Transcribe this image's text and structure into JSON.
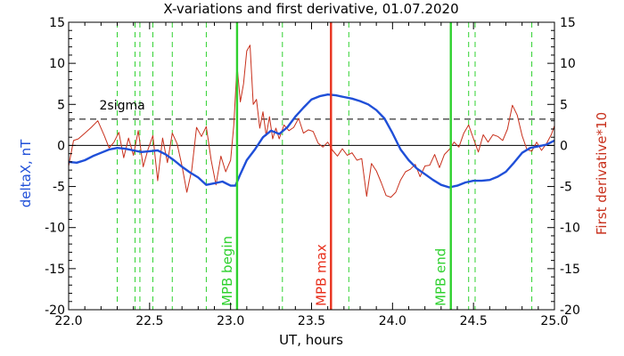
{
  "chart_data": {
    "type": "line",
    "title": "X-variations and first derivative, 01.07.2020",
    "xlabel": "UT, hours",
    "ylabel_left": "deltaX, nT",
    "ylabel_right": "First derivative*10",
    "xlim": [
      22.0,
      25.0
    ],
    "ylim": [
      -20,
      15
    ],
    "x_ticks": [
      22.0,
      22.5,
      23.0,
      23.5,
      24.0,
      24.5,
      25.0
    ],
    "x_tick_labels": [
      "22.0",
      "22.5",
      "23.0",
      "23.5",
      "24.0",
      "24.5",
      "25.0"
    ],
    "y_ticks": [
      15,
      10,
      5,
      0,
      -5,
      -10,
      -15,
      -20
    ],
    "y_tick_labels": [
      "15",
      "10",
      "5",
      "0",
      "-5",
      "-10",
      "-15",
      "-20"
    ],
    "colors": {
      "deltaX": "#1f4fd8",
      "derivative": "#c8301c",
      "mpb": "#2fd12f",
      "mpb_max": "#e8301c",
      "green_dashed": "#2fd12f",
      "sigma": "#000000"
    },
    "sigma": {
      "label": "2sigma",
      "value": 3.2
    },
    "zero_line": 0,
    "vertical_markers": [
      {
        "label": "MPB begin",
        "x": 23.04,
        "color": "#2fd12f"
      },
      {
        "label": "MPB max",
        "x": 23.62,
        "color": "#e8301c"
      },
      {
        "label": "MPB end",
        "x": 24.36,
        "color": "#2fd12f"
      }
    ],
    "dashed_verticals": [
      22.3,
      22.41,
      22.44,
      22.52,
      22.64,
      22.85,
      23.32,
      23.73,
      24.47,
      24.51,
      24.86
    ],
    "series": [
      {
        "name": "deltaX",
        "x": [
          22.0,
          22.05,
          22.1,
          22.15,
          22.2,
          22.25,
          22.3,
          22.35,
          22.4,
          22.45,
          22.5,
          22.55,
          22.6,
          22.65,
          22.7,
          22.75,
          22.8,
          22.85,
          22.9,
          22.95,
          23.0,
          23.03,
          23.06,
          23.1,
          23.15,
          23.2,
          23.25,
          23.3,
          23.35,
          23.4,
          23.45,
          23.5,
          23.55,
          23.6,
          23.65,
          23.7,
          23.75,
          23.8,
          23.85,
          23.9,
          23.95,
          24.0,
          24.05,
          24.1,
          24.15,
          24.2,
          24.25,
          24.3,
          24.35,
          24.4,
          24.45,
          24.5,
          24.55,
          24.6,
          24.65,
          24.7,
          24.75,
          24.8,
          24.85,
          24.9,
          24.95,
          25.0
        ],
        "y": [
          -2.0,
          -2.1,
          -1.8,
          -1.3,
          -0.9,
          -0.5,
          -0.3,
          -0.4,
          -0.6,
          -0.8,
          -0.7,
          -0.6,
          -1.1,
          -1.8,
          -2.6,
          -3.3,
          -3.9,
          -4.8,
          -4.6,
          -4.4,
          -4.9,
          -4.9,
          -3.5,
          -1.8,
          -0.5,
          1.0,
          1.8,
          1.4,
          2.2,
          3.5,
          4.6,
          5.6,
          6.0,
          6.2,
          6.1,
          5.9,
          5.7,
          5.4,
          5.0,
          4.3,
          3.3,
          1.5,
          -0.5,
          -1.8,
          -2.8,
          -3.5,
          -4.2,
          -4.8,
          -5.1,
          -4.9,
          -4.5,
          -4.3,
          -4.3,
          -4.2,
          -3.8,
          -3.2,
          -2.1,
          -0.9,
          -0.3,
          -0.1,
          0.1,
          0.6
        ]
      },
      {
        "name": "derivative",
        "x": [
          22.0,
          22.03,
          22.06,
          22.1,
          22.14,
          22.18,
          22.22,
          22.25,
          22.28,
          22.31,
          22.34,
          22.37,
          22.4,
          22.43,
          22.46,
          22.49,
          22.52,
          22.55,
          22.58,
          22.61,
          22.64,
          22.67,
          22.7,
          22.73,
          22.76,
          22.79,
          22.82,
          22.85,
          22.88,
          22.91,
          22.94,
          22.97,
          23.0,
          23.02,
          23.04,
          23.06,
          23.08,
          23.1,
          23.12,
          23.14,
          23.16,
          23.18,
          23.2,
          23.22,
          23.24,
          23.26,
          23.28,
          23.3,
          23.33,
          23.36,
          23.39,
          23.42,
          23.45,
          23.48,
          23.51,
          23.54,
          23.57,
          23.6,
          23.63,
          23.66,
          23.69,
          23.72,
          23.75,
          23.78,
          23.81,
          23.84,
          23.87,
          23.9,
          23.93,
          23.96,
          23.99,
          24.02,
          24.05,
          24.08,
          24.11,
          24.14,
          24.17,
          24.2,
          24.23,
          24.26,
          24.29,
          24.32,
          24.35,
          24.38,
          24.41,
          24.44,
          24.47,
          24.5,
          24.53,
          24.56,
          24.59,
          24.62,
          24.65,
          24.68,
          24.71,
          24.74,
          24.77,
          24.8,
          24.83,
          24.86,
          24.89,
          24.92,
          24.95,
          24.98,
          25.0
        ],
        "y": [
          -2.5,
          0.6,
          0.8,
          1.5,
          2.2,
          3.0,
          1.2,
          -0.3,
          0.4,
          1.6,
          -1.5,
          0.9,
          -1.2,
          1.8,
          -2.6,
          -0.5,
          1.2,
          -4.3,
          0.9,
          -2.1,
          1.5,
          0.2,
          -2.5,
          -5.7,
          -3.0,
          2.2,
          1.1,
          2.3,
          -1.8,
          -4.8,
          -1.3,
          -3.2,
          -1.8,
          2.5,
          9.8,
          5.3,
          7.5,
          11.5,
          12.2,
          5.0,
          5.6,
          2.1,
          4.1,
          1.2,
          3.5,
          0.8,
          2.1,
          0.8,
          2.5,
          1.8,
          2.2,
          3.3,
          1.5,
          1.9,
          1.7,
          0.3,
          -0.2,
          0.4,
          -0.6,
          -1.3,
          -0.4,
          -1.2,
          -0.9,
          -1.8,
          -1.6,
          -6.2,
          -2.2,
          -3.1,
          -4.5,
          -6.1,
          -6.3,
          -5.7,
          -4.2,
          -3.2,
          -2.9,
          -2.3,
          -3.8,
          -2.5,
          -2.4,
          -1.1,
          -2.7,
          -1.1,
          -0.5,
          0.4,
          -0.2,
          1.5,
          2.5,
          0.8,
          -0.8,
          1.3,
          0.4,
          1.3,
          1.1,
          0.6,
          2.0,
          4.9,
          3.7,
          1.2,
          -0.5,
          -0.7,
          0.4,
          -0.6,
          0.2,
          1.3,
          2.4
        ]
      }
    ]
  }
}
